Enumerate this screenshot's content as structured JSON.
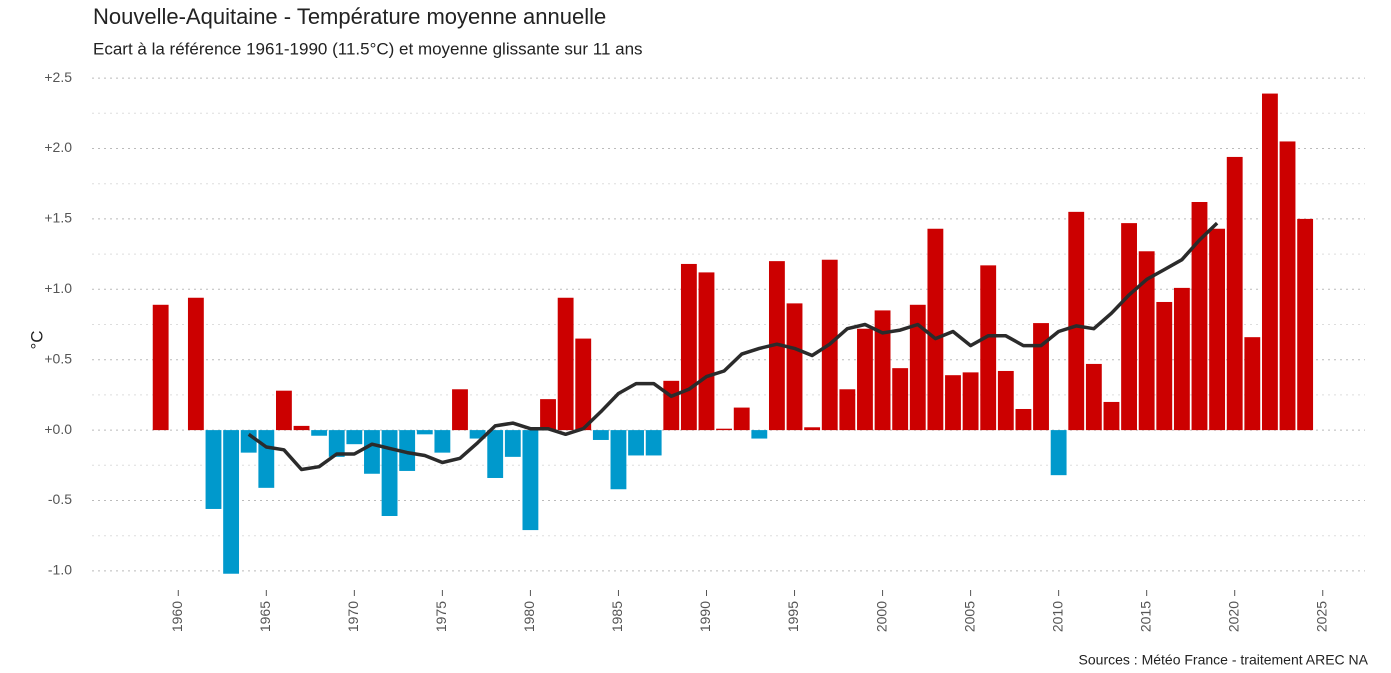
{
  "chart_data": {
    "type": "bar",
    "title": "Nouvelle-Aquitaine - Température moyenne annuelle",
    "subtitle": "Ecart à la référence 1961-1990 (11.5°C) et moyenne glissante sur 11 ans",
    "ylabel": "°C",
    "source": "Sources : Météo France - traitement AREC NA",
    "x": [
      1959,
      1960,
      1961,
      1962,
      1963,
      1964,
      1965,
      1966,
      1967,
      1968,
      1969,
      1970,
      1971,
      1972,
      1973,
      1974,
      1975,
      1976,
      1977,
      1978,
      1979,
      1980,
      1981,
      1982,
      1983,
      1984,
      1985,
      1986,
      1987,
      1988,
      1989,
      1990,
      1991,
      1992,
      1993,
      1994,
      1995,
      1996,
      1997,
      1998,
      1999,
      2000,
      2001,
      2002,
      2003,
      2004,
      2005,
      2006,
      2007,
      2008,
      2009,
      2010,
      2011,
      2012,
      2013,
      2014,
      2015,
      2016,
      2017,
      2018,
      2019,
      2020,
      2021,
      2022,
      2023,
      2024
    ],
    "values": [
      0.89,
      0,
      0.94,
      -0.56,
      -1.02,
      -0.16,
      -0.41,
      0.28,
      0.03,
      -0.04,
      -0.19,
      -0.1,
      -0.31,
      -0.61,
      -0.29,
      -0.03,
      -0.16,
      0.29,
      -0.06,
      -0.34,
      -0.19,
      -0.71,
      0.22,
      0.94,
      0.65,
      -0.07,
      -0.42,
      -0.18,
      -0.18,
      0.35,
      1.18,
      1.12,
      0.01,
      0.16,
      -0.06,
      1.2,
      0.9,
      0.02,
      1.21,
      0.29,
      0.72,
      0.85,
      0.44,
      0.89,
      1.43,
      0.39,
      0.41,
      1.17,
      0.42,
      0.15,
      0.76,
      -0.32,
      1.55,
      0.47,
      0.2,
      1.47,
      1.27,
      0.91,
      1.01,
      1.62,
      1.43,
      1.94,
      0.66,
      2.39,
      2.05,
      1.5
    ],
    "positive_color": "#cc0000",
    "negative_color": "#0099cc",
    "moving_average": {
      "color": "#2b2b2b",
      "values": [
        null,
        null,
        null,
        null,
        null,
        -0.03,
        -0.12,
        -0.14,
        -0.28,
        -0.26,
        -0.17,
        -0.17,
        -0.1,
        -0.13,
        -0.16,
        -0.18,
        -0.23,
        -0.2,
        -0.09,
        0.03,
        0.05,
        0.01,
        0.01,
        -0.03,
        0.01,
        0.13,
        0.26,
        0.33,
        0.33,
        0.24,
        0.29,
        0.38,
        0.42,
        0.54,
        0.58,
        0.61,
        0.58,
        0.53,
        0.61,
        0.72,
        0.75,
        0.69,
        0.71,
        0.75,
        0.65,
        0.7,
        0.6,
        0.67,
        0.67,
        0.6,
        0.6,
        0.7,
        0.74,
        0.72,
        0.83,
        0.96,
        1.07,
        1.14,
        1.21,
        1.35,
        1.47,
        null,
        null,
        null,
        null,
        null
      ]
    },
    "xlim": [
      1955.1,
      2027.4
    ],
    "xticks": [
      1960,
      1965,
      1970,
      1975,
      1980,
      1985,
      1990,
      1995,
      2000,
      2005,
      2010,
      2015,
      2020,
      2025
    ],
    "ylim": [
      -1.1,
      2.6
    ],
    "yticks": [
      {
        "value": 2.5,
        "label": "+2.5"
      },
      {
        "value": 2.0,
        "label": "+2.0"
      },
      {
        "value": 1.5,
        "label": "+1.5"
      },
      {
        "value": 1.0,
        "label": "+1.0"
      },
      {
        "value": 0.5,
        "label": "+0.5"
      },
      {
        "value": 0,
        "label": "+0.0"
      },
      {
        "value": -0.5,
        "label": "-0.5"
      },
      {
        "value": -1.0,
        "label": "-1.0"
      }
    ],
    "grid": true
  }
}
